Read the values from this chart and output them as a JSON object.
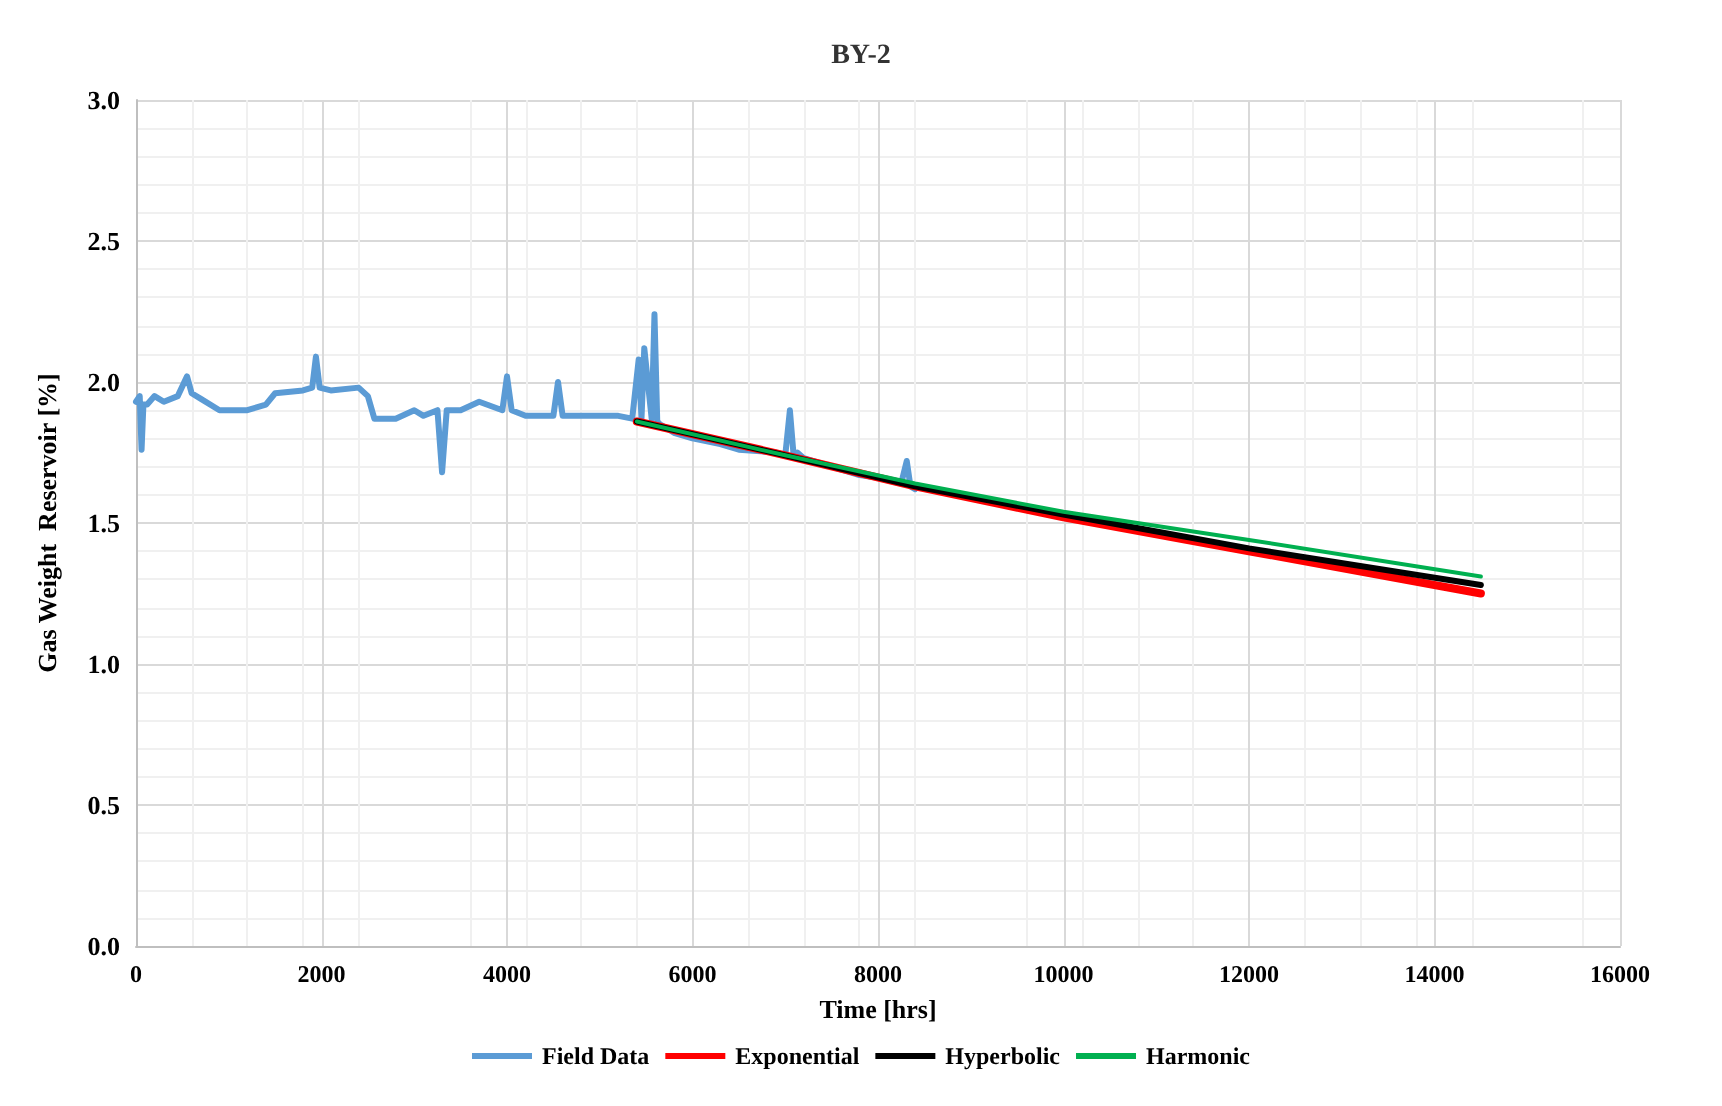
{
  "chart_data": {
    "type": "line",
    "title": "BY-2",
    "xlabel": "Time [hrs]",
    "ylabel": "Gas Weight  Reservoir [%]",
    "xlim": [
      0,
      16000
    ],
    "xticks": [
      0,
      2000,
      4000,
      6000,
      8000,
      10000,
      12000,
      14000,
      16000
    ],
    "ylim": [
      0,
      3
    ],
    "yticks": [
      {
        "value": 0,
        "label": "0.0"
      },
      {
        "value": 0.5,
        "label": "0.5"
      },
      {
        "value": 1,
        "label": "1.0"
      },
      {
        "value": 1.5,
        "label": "1.5"
      },
      {
        "value": 2,
        "label": "2.0"
      },
      {
        "value": 2.5,
        "label": "2.5"
      },
      {
        "value": 3,
        "label": "3.0"
      }
    ],
    "grid": true,
    "legend": "bottom",
    "marker": "none",
    "line_style": "solid",
    "series": [
      {
        "name": "Field Data",
        "color": "#5b9bd5",
        "x": [
          0,
          40,
          60,
          80,
          120,
          200,
          300,
          450,
          550,
          600,
          700,
          900,
          1200,
          1400,
          1500,
          1800,
          1900,
          1940,
          1980,
          2100,
          2400,
          2500,
          2570,
          2800,
          3000,
          3100,
          3250,
          3300,
          3350,
          3500,
          3700,
          3950,
          4000,
          4050,
          4200,
          4500,
          4550,
          4600,
          4800,
          5200,
          5350,
          5420,
          5450,
          5480,
          5560,
          5590,
          5620,
          5650,
          5800,
          6000,
          6300,
          6500,
          6900,
          7000,
          7050,
          7090,
          7130,
          7200,
          7500,
          7800,
          8000,
          8250,
          8310,
          8350,
          8400
        ],
        "values": [
          1.93,
          1.95,
          1.76,
          1.92,
          1.92,
          1.95,
          1.93,
          1.95,
          2.02,
          1.96,
          1.94,
          1.9,
          1.9,
          1.92,
          1.96,
          1.97,
          1.98,
          2.09,
          1.98,
          1.97,
          1.98,
          1.95,
          1.87,
          1.87,
          1.9,
          1.88,
          1.9,
          1.68,
          1.9,
          1.9,
          1.93,
          1.9,
          2.02,
          1.9,
          1.88,
          1.88,
          2.0,
          1.88,
          1.88,
          1.88,
          1.87,
          2.08,
          1.87,
          2.12,
          1.87,
          2.24,
          1.86,
          1.85,
          1.82,
          1.8,
          1.78,
          1.76,
          1.75,
          1.74,
          1.9,
          1.74,
          1.75,
          1.73,
          1.7,
          1.67,
          1.66,
          1.64,
          1.72,
          1.63,
          1.62
        ]
      },
      {
        "name": "Exponential",
        "color": "#ff0000",
        "x": [
          5400,
          7000,
          8400,
          10000,
          12000,
          14500
        ],
        "values": [
          1.86,
          1.74,
          1.63,
          1.52,
          1.4,
          1.25
        ]
      },
      {
        "name": "Hyperbolic",
        "color": "#000000",
        "x": [
          5400,
          7000,
          8400,
          10000,
          12000,
          14500
        ],
        "values": [
          1.86,
          1.74,
          1.63,
          1.53,
          1.41,
          1.28
        ]
      },
      {
        "name": "Harmonic",
        "color": "#00b050",
        "x": [
          5400,
          7000,
          8400,
          10000,
          12000,
          14500
        ],
        "values": [
          1.86,
          1.74,
          1.64,
          1.54,
          1.44,
          1.31
        ]
      }
    ]
  }
}
